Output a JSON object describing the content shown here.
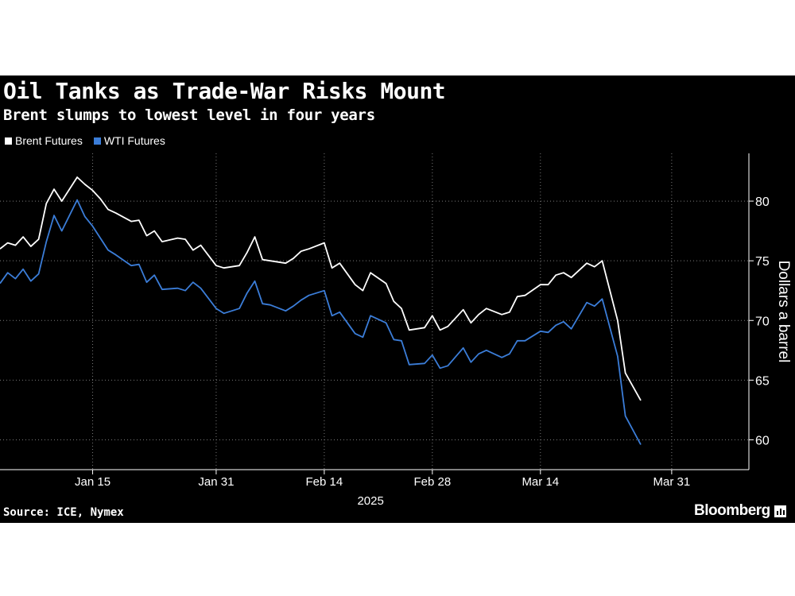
{
  "header": {
    "title": "Oil Tanks as Trade-War Risks Mount",
    "subtitle": "Brent slumps to lowest level in four years"
  },
  "footer": {
    "source": "Source: ICE, Nymex",
    "brand": "Bloomberg",
    "brand_icon": "bloomberg-logo-icon"
  },
  "colors": {
    "background": "#000000",
    "brent": "#ffffff",
    "wti": "#3b7dd8",
    "grid": "#7a7a7a",
    "text": "#ffffff"
  },
  "chart_data": {
    "type": "line",
    "title": "Oil Tanks as Trade-War Risks Mount",
    "subtitle": "Brent slumps to lowest level in four years",
    "ylabel": "Dollars a barrel",
    "xlabel": "2025",
    "ylim": [
      57.5,
      84
    ],
    "yticks": [
      60,
      65,
      70,
      75,
      80
    ],
    "xlim": [
      "2025-01-03",
      "2025-04-10"
    ],
    "xticks": [
      {
        "date": "2025-01-15",
        "label": "Jan 15"
      },
      {
        "date": "2025-01-31",
        "label": "Jan 31"
      },
      {
        "date": "2025-02-14",
        "label": "Feb 14"
      },
      {
        "date": "2025-02-28",
        "label": "Feb 28"
      },
      {
        "date": "2025-03-14",
        "label": "Mar 14"
      },
      {
        "date": "2025-03-31",
        "label": "Mar 31"
      }
    ],
    "year_label": "2025",
    "grid": "vertical-dotted",
    "legend_position": "top-left",
    "series": [
      {
        "name": "Brent Futures",
        "color": "#ffffff",
        "points": [
          [
            "2025-01-03",
            76.0
          ],
          [
            "2025-01-04",
            76.5
          ],
          [
            "2025-01-05",
            76.3
          ],
          [
            "2025-01-06",
            77.0
          ],
          [
            "2025-01-07",
            76.2
          ],
          [
            "2025-01-08",
            76.8
          ],
          [
            "2025-01-09",
            79.8
          ],
          [
            "2025-01-10",
            81.0
          ],
          [
            "2025-01-11",
            80.0
          ],
          [
            "2025-01-13",
            82.0
          ],
          [
            "2025-01-14",
            81.4
          ],
          [
            "2025-01-15",
            80.9
          ],
          [
            "2025-01-16",
            80.2
          ],
          [
            "2025-01-17",
            79.3
          ],
          [
            "2025-01-18",
            79.0
          ],
          [
            "2025-01-20",
            78.3
          ],
          [
            "2025-01-21",
            78.4
          ],
          [
            "2025-01-22",
            77.1
          ],
          [
            "2025-01-23",
            77.5
          ],
          [
            "2025-01-24",
            76.6
          ],
          [
            "2025-01-26",
            76.9
          ],
          [
            "2025-01-27",
            76.8
          ],
          [
            "2025-01-28",
            75.9
          ],
          [
            "2025-01-29",
            76.3
          ],
          [
            "2025-01-31",
            74.6
          ],
          [
            "2025-02-01",
            74.4
          ],
          [
            "2025-02-03",
            74.6
          ],
          [
            "2025-02-04",
            75.7
          ],
          [
            "2025-02-05",
            77.0
          ],
          [
            "2025-02-06",
            75.1
          ],
          [
            "2025-02-07",
            75.0
          ],
          [
            "2025-02-09",
            74.8
          ],
          [
            "2025-02-10",
            75.2
          ],
          [
            "2025-02-11",
            75.8
          ],
          [
            "2025-02-12",
            76.0
          ],
          [
            "2025-02-14",
            76.5
          ],
          [
            "2025-02-15",
            74.4
          ],
          [
            "2025-02-16",
            74.8
          ],
          [
            "2025-02-18",
            73.0
          ],
          [
            "2025-02-19",
            72.5
          ],
          [
            "2025-02-20",
            74.0
          ],
          [
            "2025-02-22",
            73.1
          ],
          [
            "2025-02-23",
            71.6
          ],
          [
            "2025-02-24",
            71.0
          ],
          [
            "2025-02-25",
            69.2
          ],
          [
            "2025-02-27",
            69.4
          ],
          [
            "2025-02-28",
            70.4
          ],
          [
            "2025-03-01",
            69.2
          ],
          [
            "2025-03-02",
            69.5
          ],
          [
            "2025-03-04",
            70.9
          ],
          [
            "2025-03-05",
            69.8
          ],
          [
            "2025-03-06",
            70.5
          ],
          [
            "2025-03-07",
            71.0
          ],
          [
            "2025-03-09",
            70.5
          ],
          [
            "2025-03-10",
            70.7
          ],
          [
            "2025-03-11",
            72.0
          ],
          [
            "2025-03-12",
            72.1
          ],
          [
            "2025-03-14",
            73.0
          ],
          [
            "2025-03-15",
            73.0
          ],
          [
            "2025-03-16",
            73.8
          ],
          [
            "2025-03-17",
            74.0
          ],
          [
            "2025-03-18",
            73.6
          ],
          [
            "2025-03-20",
            74.8
          ],
          [
            "2025-03-21",
            74.5
          ],
          [
            "2025-03-22",
            75.0
          ],
          [
            "2025-03-24",
            70.0
          ],
          [
            "2025-03-25",
            65.6
          ],
          [
            "2025-03-27",
            63.3
          ]
        ]
      },
      {
        "name": "WTI Futures",
        "color": "#3b7dd8",
        "points": [
          [
            "2025-01-03",
            73.1
          ],
          [
            "2025-01-04",
            74.0
          ],
          [
            "2025-01-05",
            73.5
          ],
          [
            "2025-01-06",
            74.3
          ],
          [
            "2025-01-07",
            73.3
          ],
          [
            "2025-01-08",
            73.9
          ],
          [
            "2025-01-09",
            76.6
          ],
          [
            "2025-01-10",
            78.8
          ],
          [
            "2025-01-11",
            77.5
          ],
          [
            "2025-01-13",
            80.1
          ],
          [
            "2025-01-14",
            78.7
          ],
          [
            "2025-01-15",
            77.9
          ],
          [
            "2025-01-16",
            76.9
          ],
          [
            "2025-01-17",
            75.9
          ],
          [
            "2025-01-18",
            75.5
          ],
          [
            "2025-01-20",
            74.6
          ],
          [
            "2025-01-21",
            74.7
          ],
          [
            "2025-01-22",
            73.2
          ],
          [
            "2025-01-23",
            73.8
          ],
          [
            "2025-01-24",
            72.6
          ],
          [
            "2025-01-26",
            72.7
          ],
          [
            "2025-01-27",
            72.5
          ],
          [
            "2025-01-28",
            73.2
          ],
          [
            "2025-01-29",
            72.7
          ],
          [
            "2025-01-31",
            71.0
          ],
          [
            "2025-02-01",
            70.6
          ],
          [
            "2025-02-03",
            71.0
          ],
          [
            "2025-02-04",
            72.3
          ],
          [
            "2025-02-05",
            73.3
          ],
          [
            "2025-02-06",
            71.4
          ],
          [
            "2025-02-07",
            71.3
          ],
          [
            "2025-02-09",
            70.8
          ],
          [
            "2025-02-10",
            71.2
          ],
          [
            "2025-02-11",
            71.7
          ],
          [
            "2025-02-12",
            72.1
          ],
          [
            "2025-02-14",
            72.5
          ],
          [
            "2025-02-15",
            70.4
          ],
          [
            "2025-02-16",
            70.7
          ],
          [
            "2025-02-18",
            68.9
          ],
          [
            "2025-02-19",
            68.6
          ],
          [
            "2025-02-20",
            70.4
          ],
          [
            "2025-02-22",
            69.8
          ],
          [
            "2025-02-23",
            68.4
          ],
          [
            "2025-02-24",
            68.3
          ],
          [
            "2025-02-25",
            66.3
          ],
          [
            "2025-02-27",
            66.4
          ],
          [
            "2025-02-28",
            67.1
          ],
          [
            "2025-03-01",
            66.0
          ],
          [
            "2025-03-02",
            66.2
          ],
          [
            "2025-03-04",
            67.7
          ],
          [
            "2025-03-05",
            66.5
          ],
          [
            "2025-03-06",
            67.2
          ],
          [
            "2025-03-07",
            67.5
          ],
          [
            "2025-03-09",
            66.9
          ],
          [
            "2025-03-10",
            67.2
          ],
          [
            "2025-03-11",
            68.3
          ],
          [
            "2025-03-12",
            68.3
          ],
          [
            "2025-03-14",
            69.1
          ],
          [
            "2025-03-15",
            69.0
          ],
          [
            "2025-03-16",
            69.6
          ],
          [
            "2025-03-17",
            69.9
          ],
          [
            "2025-03-18",
            69.3
          ],
          [
            "2025-03-20",
            71.5
          ],
          [
            "2025-03-21",
            71.2
          ],
          [
            "2025-03-22",
            71.8
          ],
          [
            "2025-03-24",
            67.0
          ],
          [
            "2025-03-25",
            62.0
          ],
          [
            "2025-03-27",
            59.6
          ]
        ]
      }
    ]
  }
}
